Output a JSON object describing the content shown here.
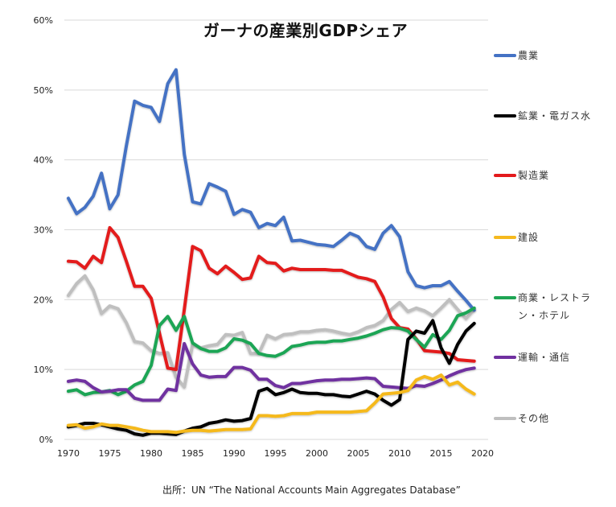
{
  "chart_data": {
    "type": "line",
    "title": "ガーナの産業別GDPシェア",
    "xlabel": "",
    "ylabel": "",
    "xlim": [
      1970,
      2020
    ],
    "ylim": [
      0,
      60
    ],
    "grid": true,
    "legend_position": "right",
    "y_ticks": [
      "0%",
      "10%",
      "20%",
      "30%",
      "40%",
      "50%",
      "60%"
    ],
    "y_tick_values": [
      0,
      10,
      20,
      30,
      40,
      50,
      60
    ],
    "x_ticks": [
      "1970",
      "1975",
      "1980",
      "1985",
      "1990",
      "1995",
      "2000",
      "2005",
      "2010",
      "2015",
      "2020"
    ],
    "x_tick_values": [
      1970,
      1975,
      1980,
      1985,
      1990,
      1995,
      2000,
      2005,
      2010,
      2015,
      2020
    ],
    "x_start": 1970,
    "series": [
      {
        "name": "農業",
        "color": "#4472c4",
        "values": [
          34.5,
          32.3,
          33.2,
          34.8,
          38.1,
          33.0,
          35.0,
          42.0,
          48.4,
          47.8,
          47.5,
          45.5,
          50.9,
          52.9,
          40.8,
          34.0,
          33.7,
          36.6,
          36.1,
          35.5,
          32.2,
          32.9,
          32.5,
          30.3,
          30.9,
          30.6,
          31.8,
          28.4,
          28.5,
          28.2,
          27.9,
          27.8,
          27.6,
          28.5,
          29.5,
          29.0,
          27.6,
          27.2,
          29.5,
          30.6,
          29.0,
          24.0,
          22.0,
          21.7,
          22.0,
          22.0,
          22.6,
          21.2,
          19.9,
          18.5
        ]
      },
      {
        "name": "鉱業・電ガス水",
        "color": "#000000",
        "values": [
          1.8,
          2.0,
          2.3,
          2.3,
          2.1,
          1.8,
          1.5,
          1.3,
          0.8,
          0.6,
          0.9,
          0.9,
          0.8,
          0.7,
          1.2,
          1.6,
          1.8,
          2.3,
          2.5,
          2.8,
          2.6,
          2.7,
          3.0,
          6.9,
          7.3,
          6.4,
          6.7,
          7.2,
          6.7,
          6.6,
          6.6,
          6.4,
          6.4,
          6.2,
          6.1,
          6.5,
          6.9,
          6.5,
          5.6,
          4.9,
          5.7,
          14.3,
          15.5,
          15.2,
          17.0,
          13.1,
          10.9,
          13.6,
          15.5,
          16.6
        ]
      },
      {
        "name": "製造業",
        "color": "#e31a1c",
        "values": [
          25.5,
          25.4,
          24.5,
          26.2,
          25.3,
          30.3,
          28.9,
          25.5,
          21.9,
          21.9,
          20.2,
          15.2,
          10.2,
          10.0,
          18.6,
          27.6,
          27.0,
          24.5,
          23.7,
          24.8,
          23.9,
          22.9,
          23.1,
          26.2,
          25.3,
          25.2,
          24.1,
          24.5,
          24.3,
          24.3,
          24.3,
          24.3,
          24.2,
          24.2,
          23.7,
          23.2,
          23.0,
          22.6,
          20.4,
          17.3,
          16.0,
          15.8,
          14.4,
          12.7,
          12.6,
          12.5,
          12.3,
          11.4,
          11.3,
          11.2
        ]
      },
      {
        "name": "建設",
        "color": "#f5b91e",
        "values": [
          2.0,
          2.1,
          1.6,
          1.8,
          2.2,
          2.0,
          2.0,
          1.8,
          1.6,
          1.3,
          1.1,
          1.1,
          1.1,
          1.0,
          1.2,
          1.3,
          1.3,
          1.2,
          1.3,
          1.4,
          1.4,
          1.4,
          1.5,
          3.4,
          3.4,
          3.3,
          3.4,
          3.7,
          3.7,
          3.7,
          3.9,
          3.9,
          3.9,
          3.9,
          3.9,
          4.0,
          4.1,
          5.2,
          6.5,
          6.6,
          6.7,
          7.0,
          8.5,
          9.0,
          8.6,
          9.2,
          7.8,
          8.2,
          7.2,
          6.5
        ]
      },
      {
        "name": "商業・レストラン・ホテル",
        "color": "#1fa554",
        "values": [
          6.9,
          7.1,
          6.4,
          6.7,
          6.8,
          7.0,
          6.4,
          6.9,
          7.8,
          8.3,
          10.6,
          16.3,
          17.6,
          15.6,
          17.6,
          13.8,
          13.0,
          12.6,
          12.6,
          13.1,
          14.4,
          14.2,
          13.7,
          12.3,
          12.0,
          11.9,
          12.4,
          13.3,
          13.5,
          13.8,
          13.9,
          13.9,
          14.1,
          14.1,
          14.3,
          14.5,
          14.8,
          15.2,
          15.7,
          16.0,
          15.9,
          15.5,
          14.3,
          13.2,
          15.0,
          14.3,
          15.6,
          17.7,
          18.1,
          18.8
        ]
      },
      {
        "name": "運輸・通信",
        "color": "#7030a0",
        "values": [
          8.3,
          8.5,
          8.3,
          7.4,
          6.8,
          6.9,
          7.1,
          7.1,
          5.9,
          5.6,
          5.6,
          5.6,
          7.2,
          7.0,
          13.7,
          10.8,
          9.2,
          8.9,
          9.0,
          9.0,
          10.3,
          10.3,
          9.9,
          8.6,
          8.6,
          7.7,
          7.4,
          8.0,
          8.0,
          8.2,
          8.4,
          8.5,
          8.5,
          8.6,
          8.6,
          8.7,
          8.8,
          8.7,
          7.6,
          7.5,
          7.4,
          7.3,
          7.7,
          7.6,
          8.0,
          8.5,
          9.1,
          9.6,
          10.0,
          10.2
        ]
      },
      {
        "name": "その他",
        "color": "#bfbfbf",
        "values": [
          20.6,
          22.3,
          23.4,
          21.4,
          18.0,
          19.1,
          18.7,
          16.7,
          14.0,
          13.8,
          12.7,
          12.3,
          12.4,
          8.9,
          7.5,
          13.6,
          13.1,
          13.4,
          13.6,
          15.0,
          14.9,
          15.3,
          12.3,
          12.3,
          14.9,
          14.4,
          15.0,
          15.1,
          15.4,
          15.4,
          15.6,
          15.7,
          15.5,
          15.2,
          15.0,
          15.4,
          16.0,
          16.3,
          17.0,
          18.6,
          19.6,
          18.3,
          18.8,
          18.4,
          17.7,
          18.8,
          20.0,
          18.6,
          17.3,
          18.6
        ]
      }
    ],
    "legend": [
      {
        "label": "農業",
        "color": "#4472c4"
      },
      {
        "label": "鉱業・電ガス水",
        "color": "#000000"
      },
      {
        "label": "製造業",
        "color": "#e31a1c"
      },
      {
        "label": "建設",
        "color": "#f5b91e"
      },
      {
        "label": "商業・レストラン・ホテル",
        "color": "#1fa554"
      },
      {
        "label": "運輸・通信",
        "color": "#7030a0"
      },
      {
        "label": "その他",
        "color": "#bfbfbf"
      }
    ],
    "source": "出所：UN “The National Accounts Main Aggregates Database”"
  }
}
